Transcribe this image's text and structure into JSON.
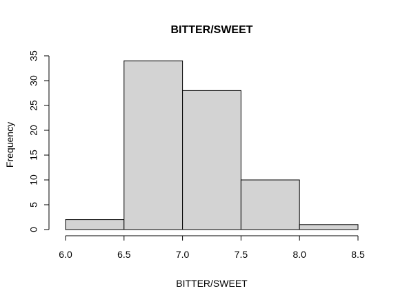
{
  "chart_data": {
    "type": "bar",
    "title": "BITTER/SWEET",
    "xlabel": "BITTER/SWEET",
    "ylabel": "Frequency",
    "bins": [
      {
        "start": 6.0,
        "end": 6.5,
        "value": 2
      },
      {
        "start": 6.5,
        "end": 7.0,
        "value": 34
      },
      {
        "start": 7.0,
        "end": 7.5,
        "value": 28
      },
      {
        "start": 7.5,
        "end": 8.0,
        "value": 10
      },
      {
        "start": 8.0,
        "end": 8.5,
        "value": 1
      }
    ],
    "xlim": [
      6.0,
      8.5
    ],
    "ylim": [
      0,
      35
    ],
    "x_ticks": [
      "6.0",
      "6.5",
      "7.0",
      "7.5",
      "8.0",
      "8.5"
    ],
    "y_ticks": [
      "0",
      "5",
      "10",
      "15",
      "20",
      "25",
      "30",
      "35"
    ],
    "grid": false,
    "colors": {
      "bar_fill": "#d3d3d3",
      "bar_stroke": "#000000"
    }
  }
}
